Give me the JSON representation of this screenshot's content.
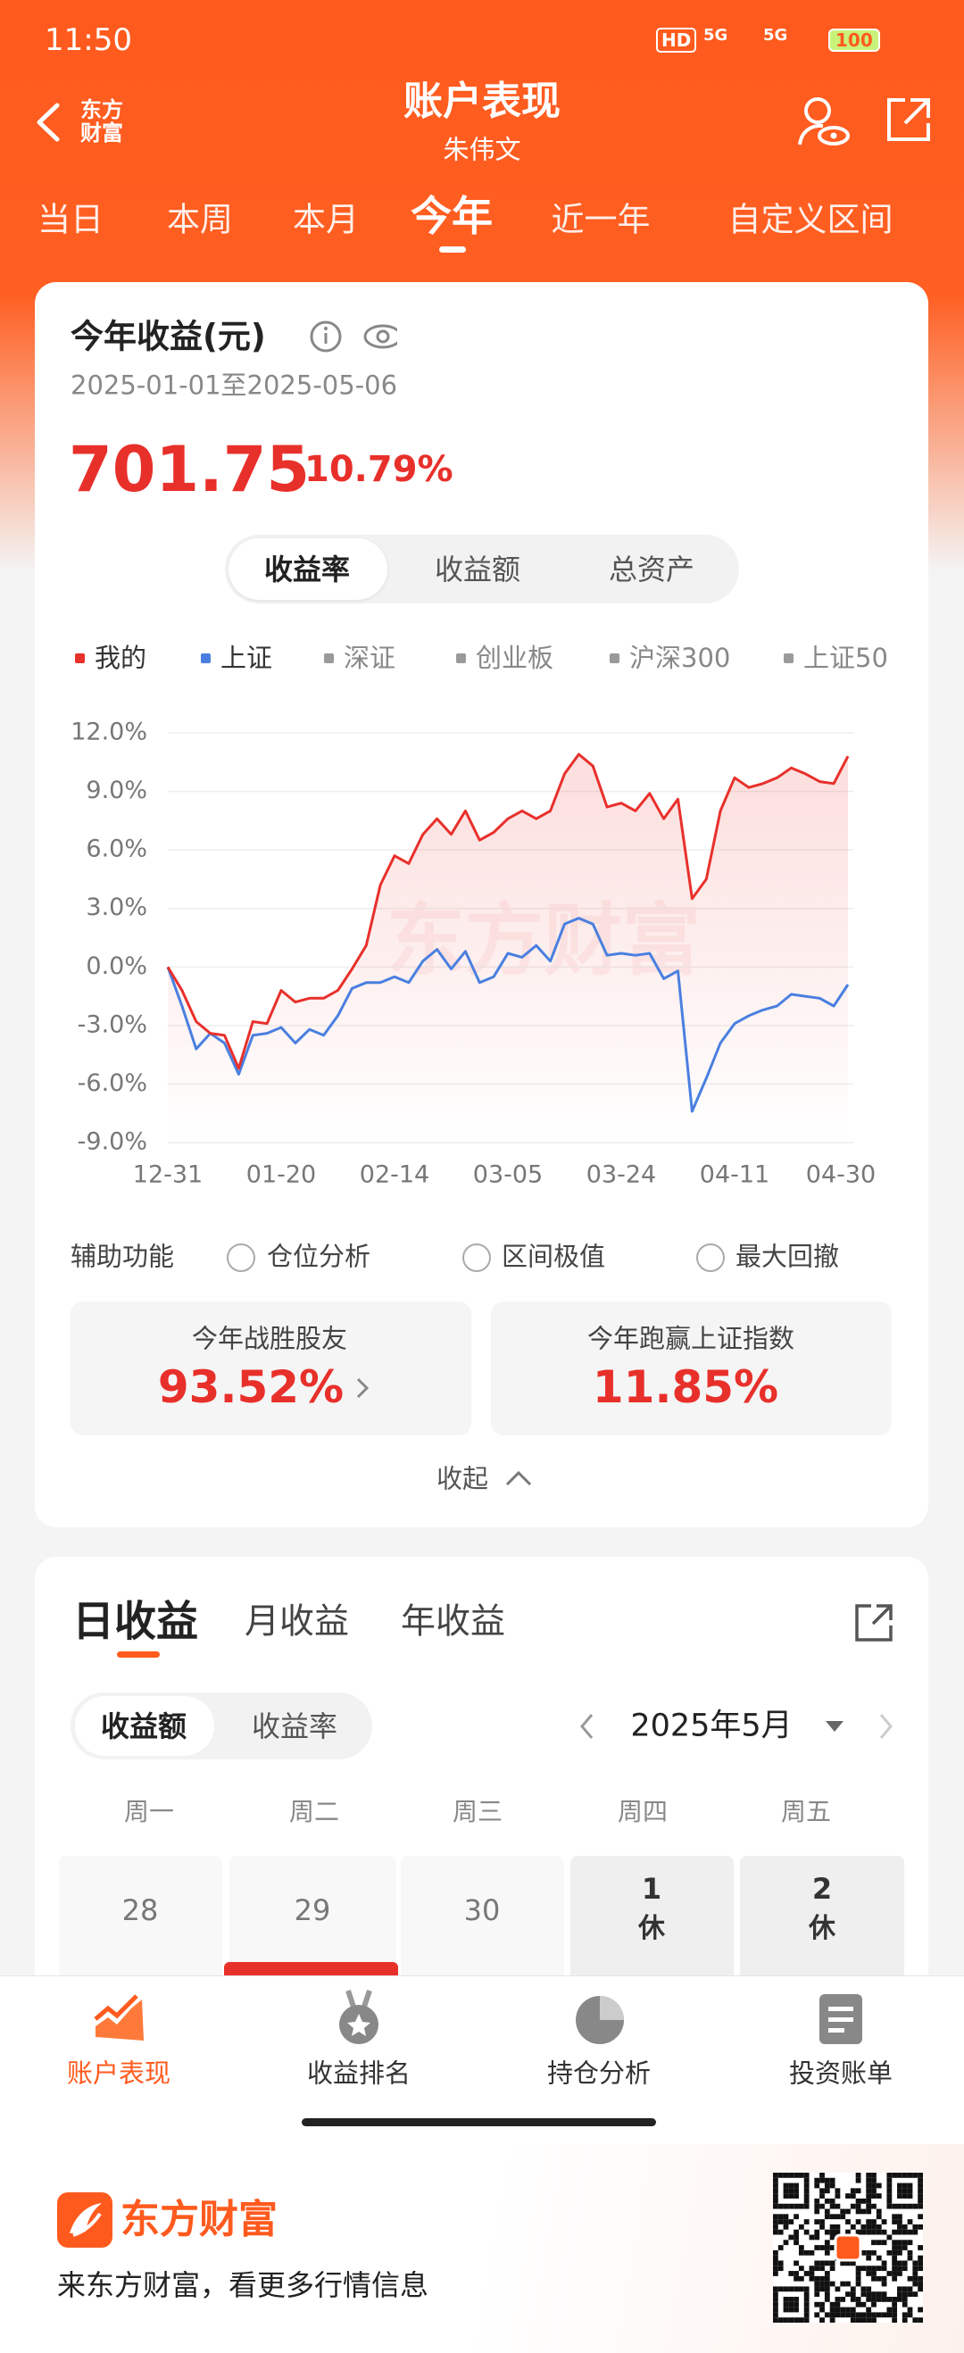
{
  "status_bar": {
    "time": "11:50",
    "network": [
      "HD",
      "5G",
      "5G"
    ],
    "battery": "100"
  },
  "header": {
    "logo": "东方财富",
    "title": "账户表现",
    "subtitle": "朱伟文"
  },
  "tabs": [
    "当日",
    "本周",
    "本月",
    "今年",
    "近一年",
    "自定义区间"
  ],
  "summary": {
    "title": "今年收益(元)",
    "date_range": "2025-01-01至2025-05-06",
    "amount": "701.75",
    "rate": "10.79%"
  },
  "metric_tabs": [
    "收益率",
    "收益额",
    "总资产"
  ],
  "chart_data": {
    "type": "line",
    "categories": [
      "12-31",
      null,
      null,
      null,
      null,
      null,
      null,
      null,
      "01-20",
      null,
      null,
      null,
      null,
      null,
      null,
      null,
      "02-14",
      null,
      null,
      null,
      null,
      null,
      null,
      null,
      "03-05",
      null,
      null,
      null,
      null,
      null,
      null,
      null,
      "03-24",
      null,
      null,
      null,
      null,
      null,
      null,
      null,
      "04-11",
      null,
      null,
      null,
      null,
      null,
      null,
      null,
      "04-30"
    ],
    "series": [
      {
        "name": "我的",
        "color": "#e8302b",
        "values": [
          0,
          -1.2,
          -2.8,
          -3.4,
          -3.5,
          -5.2,
          -2.8,
          -2.9,
          -1.2,
          -1.8,
          -1.6,
          -1.6,
          -1.2,
          -0.1,
          1.1,
          4.2,
          5.7,
          5.3,
          6.8,
          7.6,
          6.8,
          8.0,
          6.5,
          6.9,
          7.6,
          8.0,
          7.6,
          8.0,
          9.9,
          10.9,
          10.3,
          8.2,
          8.4,
          8.0,
          8.9,
          7.6,
          8.6,
          3.5,
          4.5,
          8.0,
          9.7,
          9.2,
          9.4,
          9.7,
          10.2,
          9.9,
          9.5,
          9.4,
          10.8
        ]
      },
      {
        "name": "上证",
        "color": "#4a7fe0",
        "values": [
          0,
          -2.0,
          -4.2,
          -3.4,
          -3.9,
          -5.5,
          -3.5,
          -3.4,
          -3.1,
          -3.9,
          -3.2,
          -3.5,
          -2.5,
          -1.1,
          -0.8,
          -0.8,
          -0.5,
          -0.8,
          0.3,
          0.9,
          -0.1,
          0.8,
          -0.8,
          -0.5,
          0.7,
          0.5,
          1.1,
          0.3,
          2.2,
          2.5,
          2.2,
          0.6,
          0.7,
          0.6,
          0.7,
          -0.6,
          -0.2,
          -7.4,
          -5.7,
          -3.9,
          -2.9,
          -2.5,
          -2.2,
          -2.0,
          -1.4,
          -1.5,
          -1.6,
          -2.0,
          -0.9
        ]
      }
    ],
    "legend_extra": [
      {
        "name": "深证",
        "color": "#9a9a9a"
      },
      {
        "name": "创业板",
        "color": "#9a9a9a"
      },
      {
        "name": "沪深300",
        "color": "#9a9a9a"
      },
      {
        "name": "上证50",
        "color": "#9a9a9a"
      }
    ],
    "ylim": [
      -9,
      12
    ],
    "yticks": [
      {
        "value": 12,
        "label": "12.0%"
      },
      {
        "value": 9,
        "label": "9.0%"
      },
      {
        "value": 6,
        "label": "6.0%"
      },
      {
        "value": 3,
        "label": "3.0%"
      },
      {
        "value": 0,
        "label": "0.0%"
      },
      {
        "value": -3,
        "label": "-3.0%"
      },
      {
        "value": -6,
        "label": "-6.0%"
      },
      {
        "value": -9,
        "label": "-9.0%"
      }
    ],
    "grid": true,
    "watermark": "东方财富"
  },
  "tools": {
    "label": "辅助功能",
    "options": [
      "仓位分析",
      "区间极值",
      "最大回撤"
    ]
  },
  "stats": [
    {
      "label": "今年战胜股友",
      "value": "93.52%"
    },
    {
      "label": "今年跑赢上证指数",
      "value": "11.85%"
    }
  ],
  "collapse": "收起",
  "daily": {
    "tabs": [
      "日收益",
      "月收益",
      "年收益"
    ],
    "modes": [
      "收益额",
      "收益率"
    ],
    "month": "2025年5月",
    "weekdays": [
      "周一",
      "周二",
      "周三",
      "周四",
      "周五"
    ],
    "days": [
      {
        "day": "28"
      },
      {
        "day": "29"
      },
      {
        "day": "30"
      },
      {
        "day": "1",
        "note": "休"
      },
      {
        "day": "2",
        "note": "休"
      }
    ]
  },
  "nav": [
    "账户表现",
    "收益排名",
    "持仓分析",
    "投资账单"
  ],
  "footer": {
    "logo": "东方财富",
    "slogan": "来东方财富，看更多行情信息"
  }
}
